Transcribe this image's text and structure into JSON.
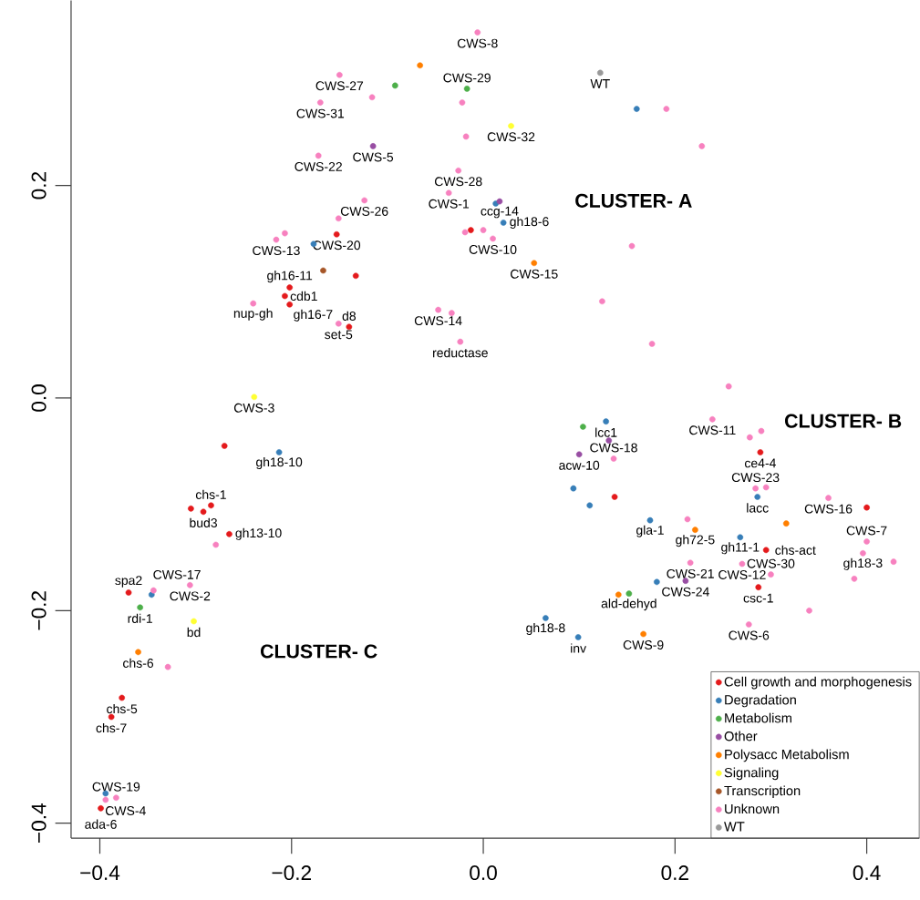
{
  "chart_data": {
    "type": "scatter",
    "marker": "circle",
    "legend": "bottom right",
    "grid": false,
    "xlim": [
      -0.43,
      0.455
    ],
    "ylim": [
      -0.414,
      0.374
    ],
    "xticks": [
      {
        "value": -0.4,
        "label": "−0.4"
      },
      {
        "value": -0.2,
        "label": "−0.2"
      },
      {
        "value": 0,
        "label": "0.0"
      },
      {
        "value": 0.2,
        "label": "0.2"
      },
      {
        "value": 0.4,
        "label": "0.4"
      }
    ],
    "yticks": [
      {
        "value": -0.4,
        "label": "−0.4"
      },
      {
        "value": -0.2,
        "label": "−0.2"
      },
      {
        "value": 0,
        "label": "0.0"
      },
      {
        "value": 0.2,
        "label": "0.2"
      }
    ],
    "series": [
      {
        "name": "Cell growth and morphogenesis",
        "color": "#e41a1c",
        "x": [
          -0.153,
          -0.133,
          -0.202,
          -0.207,
          -0.202,
          -0.14,
          -0.013,
          -0.27,
          -0.305,
          -0.284,
          -0.292,
          -0.265,
          -0.37,
          -0.377,
          -0.388,
          -0.399,
          0.137,
          0.289,
          0.4,
          0.295,
          0.287
        ],
        "values": [
          0.154,
          0.115,
          0.104,
          0.096,
          0.088,
          0.067,
          0.158,
          -0.045,
          -0.104,
          -0.101,
          -0.107,
          -0.128,
          -0.183,
          -0.282,
          -0.3,
          -0.386,
          -0.093,
          -0.051,
          -0.103,
          -0.143,
          -0.178
        ]
      },
      {
        "name": "Degradation",
        "color": "#377eb8",
        "x": [
          0.013,
          0.021,
          -0.177,
          0.16,
          -0.213,
          -0.346,
          -0.394,
          0.128,
          0.094,
          0.111,
          0.286,
          0.174,
          0.268,
          0.181,
          0.065,
          0.099
        ],
        "values": [
          0.183,
          0.165,
          0.145,
          0.272,
          -0.051,
          -0.185,
          -0.372,
          -0.022,
          -0.085,
          -0.101,
          -0.093,
          -0.115,
          -0.131,
          -0.173,
          -0.207,
          -0.225
        ]
      },
      {
        "name": "Metabolism",
        "color": "#4daf4a",
        "x": [
          -0.092,
          -0.017,
          0.104,
          0.152,
          -0.358
        ],
        "values": [
          0.294,
          0.291,
          -0.027,
          -0.184,
          -0.197
        ]
      },
      {
        "name": "Other",
        "color": "#984ea3",
        "x": [
          -0.115,
          0.017,
          0.131,
          0.1,
          0.211
        ],
        "values": [
          0.237,
          0.185,
          -0.04,
          -0.053,
          -0.172
        ]
      },
      {
        "name": "Polysacc Metabolism",
        "color": "#ff7f00",
        "x": [
          -0.066,
          0.053,
          -0.36,
          0.316,
          0.221,
          0.141,
          0.167
        ],
        "values": [
          0.313,
          0.127,
          -0.239,
          -0.118,
          -0.124,
          -0.185,
          -0.222
        ]
      },
      {
        "name": "Signaling",
        "color": "#ffff33",
        "x": [
          0.029,
          -0.239,
          -0.302
        ],
        "values": [
          0.256,
          0.001,
          -0.21
        ]
      },
      {
        "name": "Transcription",
        "color": "#a65628",
        "x": [
          -0.167
        ],
        "values": [
          0.12
        ]
      },
      {
        "name": "Unknown",
        "color": "#f781bf",
        "x": [
          -0.006,
          -0.15,
          -0.116,
          -0.17,
          -0.022,
          -0.018,
          -0.172,
          -0.026,
          -0.036,
          -0.124,
          -0.151,
          -0.207,
          -0.216,
          -0.019,
          0.0,
          0.01,
          -0.24,
          -0.151,
          -0.047,
          -0.033,
          -0.024,
          0.191,
          0.228,
          0.155,
          0.124,
          0.176,
          0.256,
          -0.279,
          -0.306,
          -0.344,
          -0.329,
          -0.383,
          -0.394,
          0.136,
          0.239,
          0.29,
          0.278,
          0.284,
          0.295,
          0.36,
          0.213,
          0.4,
          0.396,
          0.428,
          0.387,
          0.216,
          0.27,
          0.3,
          0.34,
          0.277
        ],
        "values": [
          0.344,
          0.304,
          0.283,
          0.278,
          0.278,
          0.246,
          0.228,
          0.214,
          0.193,
          0.186,
          0.169,
          0.155,
          0.149,
          0.156,
          0.158,
          0.15,
          0.089,
          0.07,
          0.083,
          0.08,
          0.053,
          0.272,
          0.237,
          0.143,
          0.091,
          0.051,
          0.011,
          -0.138,
          -0.176,
          -0.181,
          -0.253,
          -0.376,
          -0.378,
          -0.057,
          -0.02,
          -0.031,
          -0.037,
          -0.085,
          -0.084,
          -0.094,
          -0.114,
          -0.135,
          -0.146,
          -0.154,
          -0.17,
          -0.155,
          -0.156,
          -0.166,
          -0.2,
          -0.213
        ]
      },
      {
        "name": "WT",
        "color": "#999999",
        "x": [
          0.122
        ],
        "values": [
          0.306
        ]
      }
    ],
    "annotations": [
      "CLUSTER- A",
      "CLUSTER- B",
      "CLUSTER- C",
      {
        "text": "CWS-8",
        "x": -0.006,
        "y": 0.344
      },
      {
        "text": "WT",
        "x": 0.122,
        "y": 0.306
      },
      {
        "text": "CWS-27",
        "x": -0.15,
        "y": 0.304
      },
      {
        "text": "CWS-31",
        "x": -0.17,
        "y": 0.278
      },
      {
        "text": "CWS-29",
        "x": -0.017,
        "y": 0.291
      },
      {
        "text": "CWS-32",
        "x": 0.029,
        "y": 0.256
      },
      {
        "text": "CWS-5",
        "x": -0.115,
        "y": 0.237
      },
      {
        "text": "CWS-22",
        "x": -0.172,
        "y": 0.228
      },
      {
        "text": "CWS-28",
        "x": -0.026,
        "y": 0.214
      },
      {
        "text": "CWS-1",
        "x": -0.036,
        "y": 0.193
      },
      {
        "text": "ccg-14",
        "x": 0.017,
        "y": 0.185
      },
      {
        "text": "gh18-6",
        "x": 0.021,
        "y": 0.165
      },
      {
        "text": "CWS-26",
        "x": -0.124,
        "y": 0.186
      },
      {
        "text": "CWS-13",
        "x": -0.216,
        "y": 0.149
      },
      {
        "text": "CWS-20",
        "x": -0.153,
        "y": 0.154
      },
      {
        "text": "CWS-10",
        "x": 0.01,
        "y": 0.15
      },
      {
        "text": "CWS-15",
        "x": 0.053,
        "y": 0.127
      },
      {
        "text": "gh16-11",
        "x": -0.202,
        "y": 0.104
      },
      {
        "text": "cdb1",
        "x": -0.207,
        "y": 0.096
      },
      {
        "text": "nup-gh",
        "x": -0.24,
        "y": 0.089
      },
      {
        "text": "gh16-7",
        "x": -0.202,
        "y": 0.088
      },
      {
        "text": "set-5",
        "x": -0.151,
        "y": 0.07
      },
      {
        "text": "d8",
        "x": -0.14,
        "y": 0.067
      },
      {
        "text": "CWS-14",
        "x": -0.047,
        "y": 0.083
      },
      {
        "text": "reductase",
        "x": -0.024,
        "y": 0.053
      },
      {
        "text": "CWS-3",
        "x": -0.239,
        "y": 0.001
      },
      {
        "text": "gh18-10",
        "x": -0.213,
        "y": -0.051
      },
      {
        "text": "chs-1",
        "x": -0.284,
        "y": -0.101
      },
      {
        "text": "bud3",
        "x": -0.292,
        "y": -0.107
      },
      {
        "text": "gh13-10",
        "x": -0.265,
        "y": -0.128
      },
      {
        "text": "CWS-2",
        "x": -0.306,
        "y": -0.176
      },
      {
        "text": "spa2",
        "x": -0.37,
        "y": -0.183
      },
      {
        "text": "CWS-17",
        "x": -0.344,
        "y": -0.181
      },
      {
        "text": "rdi-1",
        "x": -0.358,
        "y": -0.197
      },
      {
        "text": "bd",
        "x": -0.302,
        "y": -0.21
      },
      {
        "text": "chs-6",
        "x": -0.36,
        "y": -0.239
      },
      {
        "text": "chs-5",
        "x": -0.377,
        "y": -0.282
      },
      {
        "text": "chs-7",
        "x": -0.388,
        "y": -0.3
      },
      {
        "text": "CWS-19",
        "x": -0.383,
        "y": -0.376
      },
      {
        "text": "CWS-4",
        "x": -0.394,
        "y": -0.378
      },
      {
        "text": "ada-6",
        "x": -0.399,
        "y": -0.386
      },
      {
        "text": "lcc1",
        "x": 0.128,
        "y": -0.022
      },
      {
        "text": "acw-10",
        "x": 0.1,
        "y": -0.053
      },
      {
        "text": "CWS-18",
        "x": 0.136,
        "y": -0.057
      },
      {
        "text": "CWS-11",
        "x": 0.239,
        "y": -0.02
      },
      {
        "text": "ce4-4",
        "x": 0.289,
        "y": -0.051
      },
      {
        "text": "CWS-23",
        "x": 0.284,
        "y": -0.085
      },
      {
        "text": "lacc",
        "x": 0.286,
        "y": -0.093
      },
      {
        "text": "CWS-16",
        "x": 0.36,
        "y": -0.094
      },
      {
        "text": "gla-1",
        "x": 0.174,
        "y": -0.115
      },
      {
        "text": "gh72-5",
        "x": 0.221,
        "y": -0.124
      },
      {
        "text": "gh11-1",
        "x": 0.268,
        "y": -0.131
      },
      {
        "text": "chs-act",
        "x": 0.295,
        "y": -0.143
      },
      {
        "text": "CWS-7",
        "x": 0.4,
        "y": -0.135
      },
      {
        "text": "gh18-3",
        "x": 0.396,
        "y": -0.146
      },
      {
        "text": "CWS-21",
        "x": 0.216,
        "y": -0.155
      },
      {
        "text": "CWS-12",
        "x": 0.27,
        "y": -0.156
      },
      {
        "text": "CWS-24",
        "x": 0.211,
        "y": -0.172
      },
      {
        "text": "CWS-30",
        "x": 0.3,
        "y": -0.166
      },
      {
        "text": "csc-1",
        "x": 0.287,
        "y": -0.178
      },
      {
        "text": "ald-dehyd",
        "x": 0.152,
        "y": -0.184
      },
      {
        "text": "CWS-6",
        "x": 0.277,
        "y": -0.213
      },
      {
        "text": "gh18-8",
        "x": 0.065,
        "y": -0.207
      },
      {
        "text": "inv",
        "x": 0.099,
        "y": -0.225
      },
      {
        "text": "CWS-9",
        "x": 0.167,
        "y": -0.222
      }
    ]
  }
}
